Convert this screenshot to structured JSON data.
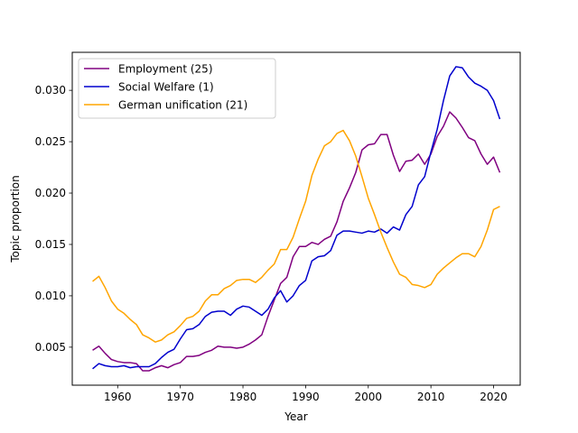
{
  "chart_data": {
    "type": "line",
    "xlabel": "Year",
    "ylabel": "Topic proportion",
    "xlim": [
      1952.75,
      2024.25
    ],
    "ylim": [
      0.0013,
      0.0337
    ],
    "x_ticks": [
      1960,
      1970,
      1980,
      1990,
      2000,
      2010,
      2020
    ],
    "y_ticks": [
      0.005,
      0.01,
      0.015,
      0.02,
      0.025,
      0.03
    ],
    "y_tick_labels": [
      "0.005",
      "0.010",
      "0.015",
      "0.020",
      "0.025",
      "0.030"
    ],
    "grid": false,
    "legend_position": "top-left",
    "x": [
      1956,
      1957,
      1958,
      1959,
      1960,
      1961,
      1962,
      1963,
      1964,
      1965,
      1966,
      1967,
      1968,
      1969,
      1970,
      1971,
      1972,
      1973,
      1974,
      1975,
      1976,
      1977,
      1978,
      1979,
      1980,
      1981,
      1982,
      1983,
      1984,
      1985,
      1986,
      1987,
      1988,
      1989,
      1990,
      1991,
      1992,
      1993,
      1994,
      1995,
      1996,
      1997,
      1998,
      1999,
      2000,
      2001,
      2002,
      2003,
      2004,
      2005,
      2006,
      2007,
      2008,
      2009,
      2010,
      2011,
      2012,
      2013,
      2014,
      2015,
      2016,
      2017,
      2018,
      2019,
      2020,
      2021
    ],
    "series": [
      {
        "name": "Employment (25)",
        "color": "#800080",
        "values": [
          0.0047,
          0.0051,
          0.0044,
          0.0038,
          0.0036,
          0.0035,
          0.0035,
          0.0034,
          0.0027,
          0.0027,
          0.003,
          0.0032,
          0.003,
          0.0033,
          0.0035,
          0.0041,
          0.0041,
          0.0042,
          0.0045,
          0.0047,
          0.0051,
          0.005,
          0.005,
          0.0049,
          0.005,
          0.0053,
          0.0057,
          0.0062,
          0.008,
          0.0096,
          0.0112,
          0.0118,
          0.0138,
          0.0148,
          0.0148,
          0.0152,
          0.015,
          0.0155,
          0.0158,
          0.0172,
          0.0192,
          0.0205,
          0.022,
          0.0242,
          0.0247,
          0.0248,
          0.0257,
          0.0257,
          0.0237,
          0.0221,
          0.0231,
          0.0232,
          0.0238,
          0.0228,
          0.0238,
          0.0255,
          0.0265,
          0.0279,
          0.0273,
          0.0264,
          0.0254,
          0.0251,
          0.0238,
          0.0228,
          0.0235,
          0.022
        ]
      },
      {
        "name": "Social Welfare (1)",
        "color": "#0000cd",
        "values": [
          0.0029,
          0.0034,
          0.0032,
          0.0031,
          0.0031,
          0.0032,
          0.003,
          0.0031,
          0.0031,
          0.0031,
          0.0034,
          0.004,
          0.0045,
          0.0048,
          0.0058,
          0.0067,
          0.0068,
          0.0072,
          0.008,
          0.0084,
          0.0085,
          0.0085,
          0.0081,
          0.0087,
          0.009,
          0.0089,
          0.0085,
          0.0081,
          0.0087,
          0.0098,
          0.0105,
          0.0094,
          0.01,
          0.011,
          0.0115,
          0.0134,
          0.0138,
          0.0139,
          0.0144,
          0.0159,
          0.0163,
          0.0163,
          0.0162,
          0.0161,
          0.0163,
          0.0162,
          0.0165,
          0.0161,
          0.0167,
          0.0164,
          0.0179,
          0.0187,
          0.0208,
          0.0216,
          0.024,
          0.0262,
          0.029,
          0.0314,
          0.0323,
          0.0322,
          0.0313,
          0.0307,
          0.0304,
          0.03,
          0.029,
          0.0272
        ]
      },
      {
        "name": "German unification (21)",
        "color": "#ffa500",
        "values": [
          0.0114,
          0.0119,
          0.0108,
          0.0095,
          0.0087,
          0.0083,
          0.0077,
          0.0072,
          0.0062,
          0.0059,
          0.0055,
          0.0057,
          0.0062,
          0.0065,
          0.0071,
          0.0078,
          0.008,
          0.0085,
          0.0095,
          0.0101,
          0.0101,
          0.0107,
          0.011,
          0.0115,
          0.0116,
          0.0116,
          0.0113,
          0.0118,
          0.0125,
          0.0131,
          0.0145,
          0.0145,
          0.0157,
          0.0175,
          0.0192,
          0.0217,
          0.0233,
          0.0246,
          0.025,
          0.0258,
          0.0261,
          0.0251,
          0.0236,
          0.0216,
          0.0195,
          0.0179,
          0.0162,
          0.0147,
          0.0133,
          0.0121,
          0.0118,
          0.0111,
          0.011,
          0.0108,
          0.0111,
          0.0121,
          0.0127,
          0.0132,
          0.0137,
          0.0141,
          0.0141,
          0.0138,
          0.0148,
          0.0164,
          0.0184,
          0.0187
        ]
      }
    ]
  }
}
